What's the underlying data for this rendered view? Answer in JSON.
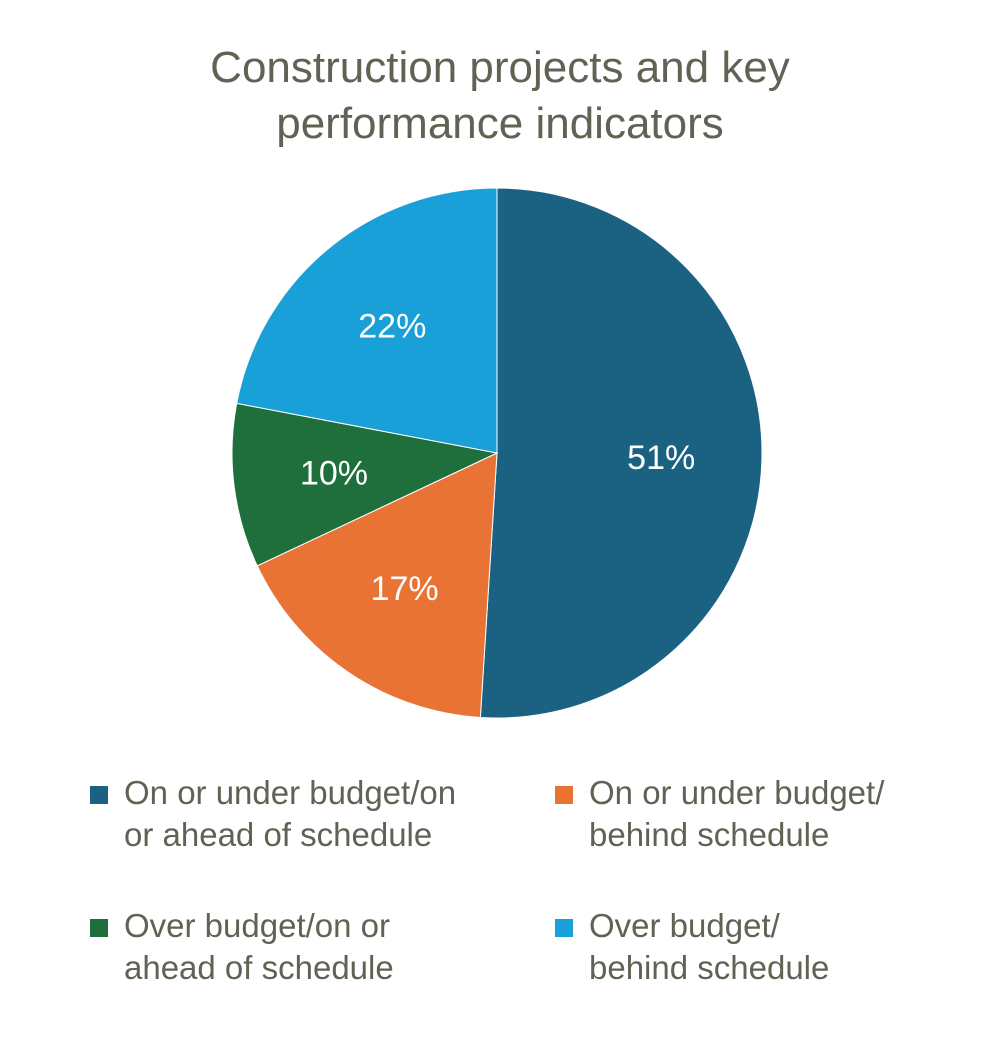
{
  "chart_data": {
    "type": "pie",
    "title_lines": [
      "Construction projects and key",
      "performance indicators"
    ],
    "slices": [
      {
        "label_lines": [
          "On or under budget/on",
          "or ahead of schedule"
        ],
        "value": 51,
        "display": "51%",
        "color": "#1b6182"
      },
      {
        "label_lines": [
          "On or under budget/",
          "behind schedule"
        ],
        "value": 17,
        "display": "17%",
        "color": "#e97334"
      },
      {
        "label_lines": [
          "Over budget/on or",
          "ahead of schedule"
        ],
        "value": 10,
        "display": "10%",
        "color": "#1e6f3b"
      },
      {
        "label_lines": [
          "Over budget/",
          "behind schedule"
        ],
        "value": 22,
        "display": "22%",
        "color": "#19a0d8"
      }
    ],
    "legend_placement": "bottom"
  }
}
